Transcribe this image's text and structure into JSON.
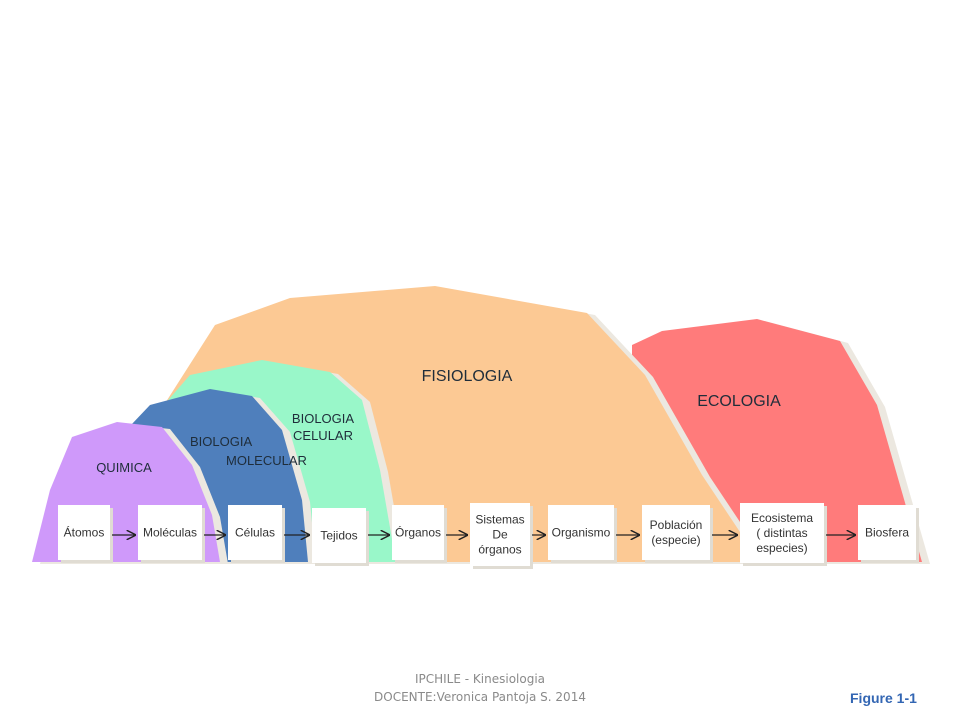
{
  "domains": [
    {
      "id": "ecologia",
      "label_lines": [
        "ECOLOGIA"
      ],
      "color": "#ff7b7b"
    },
    {
      "id": "fisiologia",
      "label_lines": [
        "FISIOLOGIA"
      ],
      "color": "#fcc994"
    },
    {
      "id": "biologia-celular",
      "label_lines": [
        "BIOLOGIA",
        "CELULAR"
      ],
      "color": "#99f7c9"
    },
    {
      "id": "biologia-molecular",
      "label_lines": [
        "BIOLOGIA",
        "MOLECULAR"
      ],
      "color": "#4f7fbc"
    },
    {
      "id": "quimica",
      "label_lines": [
        "QUIMICA"
      ],
      "color": "#cf99fa"
    }
  ],
  "levels": [
    {
      "id": "atomos",
      "label_lines": [
        "Átomos"
      ]
    },
    {
      "id": "moleculas",
      "label_lines": [
        "Moléculas"
      ]
    },
    {
      "id": "celulas",
      "label_lines": [
        "Células"
      ]
    },
    {
      "id": "tejidos",
      "label_lines": [
        "Tejidos"
      ]
    },
    {
      "id": "organos",
      "label_lines": [
        "Órganos"
      ]
    },
    {
      "id": "sistemas",
      "label_lines": [
        "Sistemas",
        "De",
        "órganos"
      ]
    },
    {
      "id": "organismo",
      "label_lines": [
        "Organismo"
      ]
    },
    {
      "id": "poblacion",
      "label_lines": [
        "Población",
        "(especie)"
      ]
    },
    {
      "id": "ecosistema",
      "label_lines": [
        "Ecosistema",
        "( distintas",
        "especies)"
      ]
    },
    {
      "id": "biosfera",
      "label_lines": [
        "Biosfera"
      ]
    }
  ],
  "footer": {
    "line1": "IPCHILE  - Kinesiologia",
    "line2": "DOCENTE:Veronica Pantoja S. 2014"
  },
  "figure_label": "Figure 1-1"
}
